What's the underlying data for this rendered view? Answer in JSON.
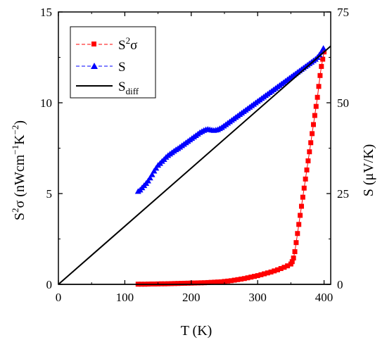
{
  "chart_data": {
    "type": "scatter",
    "xlabel": "T (K)",
    "ylabel_left": {
      "base": "S",
      "sup1": "2",
      "mid": "σ (nWcm",
      "sup2": "−1",
      "mid2": "K",
      "sup3": "−2",
      "end": ")"
    },
    "ylabel_right": "S (μV/K)",
    "xlim": [
      0,
      410
    ],
    "ylim_left": [
      0,
      15
    ],
    "ylim_right": [
      0,
      75
    ],
    "x_ticks": [
      0,
      100,
      200,
      300,
      400
    ],
    "y_ticks_left": [
      0,
      5,
      10,
      15
    ],
    "y_ticks_right": [
      0,
      25,
      50,
      75
    ],
    "grid": false,
    "legend_position": "top-left",
    "series": [
      {
        "name": "S²σ",
        "legend_text": {
          "base": "S",
          "sup": "2",
          "end": "σ"
        },
        "axis": "left",
        "color": "#ff0000",
        "marker": "square",
        "x": [
          120,
          125,
          130,
          135,
          140,
          145,
          150,
          155,
          160,
          165,
          170,
          175,
          180,
          185,
          190,
          195,
          200,
          205,
          210,
          215,
          220,
          225,
          230,
          235,
          240,
          245,
          250,
          255,
          260,
          265,
          270,
          275,
          280,
          285,
          290,
          295,
          300,
          305,
          310,
          315,
          320,
          325,
          330,
          335,
          340,
          345,
          350,
          352,
          354,
          356,
          358,
          360,
          362,
          364,
          366,
          368,
          370,
          372,
          374,
          376,
          378,
          380,
          382,
          384,
          386,
          388,
          390,
          392,
          394,
          396,
          398,
          400
        ],
        "y": [
          0.01,
          0.01,
          0.01,
          0.015,
          0.02,
          0.02,
          0.025,
          0.03,
          0.03,
          0.035,
          0.04,
          0.045,
          0.05,
          0.055,
          0.06,
          0.065,
          0.07,
          0.075,
          0.08,
          0.085,
          0.09,
          0.1,
          0.11,
          0.12,
          0.13,
          0.14,
          0.16,
          0.18,
          0.2,
          0.23,
          0.26,
          0.29,
          0.32,
          0.36,
          0.4,
          0.44,
          0.48,
          0.53,
          0.58,
          0.63,
          0.68,
          0.74,
          0.8,
          0.87,
          0.94,
          1.02,
          1.12,
          1.25,
          1.45,
          1.8,
          2.3,
          2.8,
          3.3,
          3.8,
          4.3,
          4.8,
          5.3,
          5.8,
          6.3,
          6.8,
          7.3,
          7.8,
          8.3,
          8.8,
          9.3,
          9.8,
          10.3,
          10.9,
          11.5,
          12.0,
          12.4,
          12.8
        ]
      },
      {
        "name": "S",
        "axis": "right",
        "color": "#0000ff",
        "marker": "triangle",
        "x": [
          120,
          123,
          126,
          129,
          132,
          135,
          138,
          141,
          144,
          147,
          150,
          153,
          156,
          159,
          162,
          165,
          168,
          171,
          174,
          177,
          180,
          183,
          186,
          189,
          192,
          195,
          198,
          201,
          204,
          207,
          210,
          213,
          216,
          219,
          222,
          225,
          228,
          231,
          234,
          237,
          240,
          243,
          246,
          249,
          252,
          255,
          258,
          261,
          264,
          267,
          270,
          273,
          276,
          279,
          282,
          285,
          288,
          291,
          294,
          297,
          300,
          303,
          306,
          309,
          312,
          315,
          318,
          321,
          324,
          327,
          330,
          333,
          336,
          339,
          342,
          345,
          348,
          351,
          354,
          357,
          360,
          363,
          366,
          369,
          372,
          375,
          378,
          381,
          384,
          387,
          390,
          393,
          396,
          399
        ],
        "y": [
          25.6,
          26.0,
          26.6,
          27.2,
          27.8,
          28.5,
          29.3,
          30.2,
          31.2,
          32.0,
          32.8,
          33.3,
          33.9,
          34.4,
          35.0,
          35.5,
          35.9,
          36.3,
          36.7,
          37.1,
          37.4,
          37.8,
          38.2,
          38.6,
          39.0,
          39.4,
          39.8,
          40.2,
          40.6,
          41.0,
          41.4,
          41.8,
          42.1,
          42.4,
          42.6,
          42.7,
          42.6,
          42.5,
          42.4,
          42.5,
          42.6,
          42.9,
          43.2,
          43.6,
          44.0,
          44.4,
          44.8,
          45.2,
          45.6,
          46.0,
          46.4,
          46.8,
          47.2,
          47.6,
          48.0,
          48.4,
          48.8,
          49.2,
          49.6,
          50.0,
          50.4,
          50.8,
          51.2,
          51.6,
          52.0,
          52.4,
          52.8,
          53.2,
          53.6,
          54.0,
          54.4,
          54.8,
          55.2,
          55.6,
          56.0,
          56.4,
          56.8,
          57.2,
          57.6,
          58.0,
          58.4,
          58.8,
          59.2,
          59.6,
          60.0,
          60.4,
          60.8,
          61.2,
          61.6,
          62.0,
          62.5,
          63.2,
          64.0,
          65.0
        ]
      },
      {
        "name": "Sdiff",
        "legend_text": {
          "base": "S",
          "sub": "diff"
        },
        "axis": "right",
        "color": "#000000",
        "marker": "none",
        "x": [
          0,
          410
        ],
        "y": [
          0,
          65.6
        ]
      }
    ]
  }
}
